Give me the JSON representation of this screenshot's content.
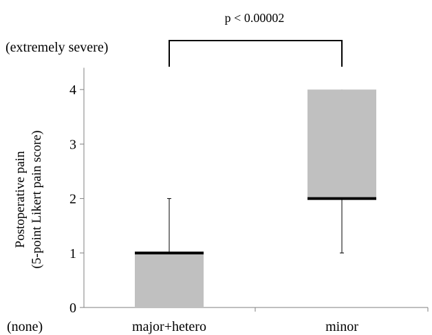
{
  "chart_data": {
    "type": "box",
    "title": "",
    "ylabel_line1": "Postoperative pain",
    "ylabel_line2": "(5-point Likert pain score)",
    "top_anchor_label": "(extremely severe)",
    "bottom_anchor_label": "(none)",
    "ylim": [
      0,
      4.4
    ],
    "yticks": [
      "0",
      "1",
      "2",
      "3",
      "4"
    ],
    "categories": [
      "major+hetero",
      "minor"
    ],
    "boxes": [
      {
        "category": "major+hetero",
        "min": 0,
        "q1": 0,
        "median": 1,
        "q3": 1,
        "max": 2
      },
      {
        "category": "minor",
        "min": 1,
        "q1": 2,
        "median": 2,
        "q3": 4,
        "max": 4
      }
    ],
    "significance": {
      "label": "p < 0.00002",
      "between": [
        "major+hetero",
        "minor"
      ]
    },
    "colors": {
      "box_fill": "#c0c0c0",
      "median": "#000000",
      "axis": "#7f7f7f"
    }
  }
}
